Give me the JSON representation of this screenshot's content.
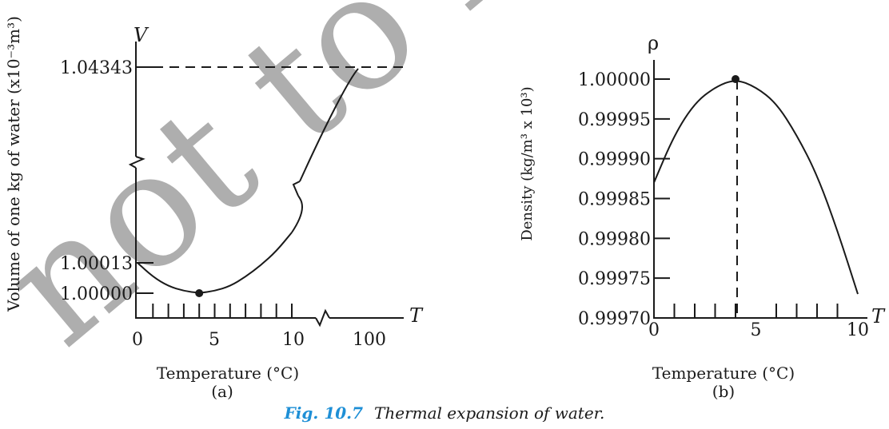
{
  "watermark": "not to be",
  "chart_data": [
    {
      "type": "line",
      "panel_label": "(a)",
      "xlabel": "Temperature (°C)",
      "ylabel": "Volume of one kg of water (x10⁻³m³)",
      "x_axis_symbol": "T",
      "y_axis_symbol": "V",
      "x_ticks": [
        "0",
        "5",
        "10",
        "100"
      ],
      "y_ticks": [
        "1.00000",
        "1.00013",
        "1.04343"
      ],
      "x_break_after": "10",
      "y_break_between": [
        "1.00013",
        "1.04343"
      ],
      "series": [
        {
          "x": [
            0,
            1,
            2,
            3,
            4,
            5,
            6,
            7,
            8,
            9,
            10,
            100
          ],
          "y": [
            1.00013,
            1.00007,
            1.00003,
            1.00001,
            1.0,
            1.00001,
            1.00003,
            1.00007,
            1.00012,
            1.00018,
            1.00026,
            1.04343
          ]
        }
      ],
      "marked_point": {
        "x": 4,
        "y": 1.0
      },
      "reference_line": {
        "y": 1.04343,
        "style": "dashed"
      }
    },
    {
      "type": "line",
      "panel_label": "(b)",
      "xlabel": "Temperature (°C)",
      "ylabel": "Density (kg/m³ x 10³)",
      "x_axis_symbol": "T",
      "y_axis_symbol": "ρ",
      "x_ticks": [
        "0",
        "5",
        "10"
      ],
      "y_ticks": [
        "0.99970",
        "0.99975",
        "0.99980",
        "0.99985",
        "0.99990",
        "0.99995",
        "1.00000"
      ],
      "xlim": [
        0,
        10
      ],
      "ylim": [
        0.9997,
        1.00002
      ],
      "series": [
        {
          "x": [
            0,
            1,
            2,
            3,
            4,
            5,
            6,
            7,
            8,
            9,
            10
          ],
          "y": [
            0.99987,
            0.99993,
            0.99997,
            0.99999,
            1.0,
            0.99999,
            0.99997,
            0.99993,
            0.99988,
            0.99981,
            0.99973
          ]
        }
      ],
      "marked_point": {
        "x": 4,
        "y": 1.0
      },
      "reference_line": {
        "x": 4,
        "style": "dashed"
      }
    }
  ],
  "caption": {
    "number": "Fig. 10.7",
    "text": "Thermal expansion of water."
  }
}
